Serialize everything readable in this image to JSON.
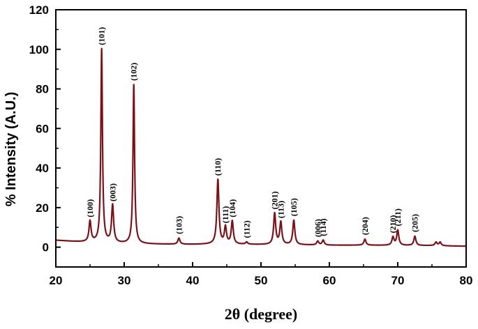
{
  "chart_data": {
    "type": "line",
    "title": "",
    "xlabel": "2θ (degree)",
    "ylabel": "% Intensity (A.U.)",
    "xlim": [
      20,
      80
    ],
    "ylim": [
      -10,
      120
    ],
    "x_ticks": [
      "20",
      "30",
      "40",
      "50",
      "60",
      "70",
      "80"
    ],
    "y_ticks": [
      "0",
      "20",
      "40",
      "60",
      "80",
      "100",
      "120"
    ],
    "grid": false,
    "legend": "none",
    "line_color": "#7a1218",
    "baseline": [
      [
        20,
        3.5
      ],
      [
        22,
        3.0
      ],
      [
        24,
        2.6
      ],
      [
        26,
        2.3
      ],
      [
        30,
        1.8
      ],
      [
        33,
        1.6
      ],
      [
        36,
        1.5
      ],
      [
        40,
        1.4
      ],
      [
        43,
        1.5
      ],
      [
        47,
        1.4
      ],
      [
        50,
        1.3
      ],
      [
        55,
        1.2
      ],
      [
        60,
        1.0
      ],
      [
        65,
        1.0
      ],
      [
        70,
        0.9
      ],
      [
        75,
        0.8
      ],
      [
        78,
        0.6
      ],
      [
        80,
        0.5
      ]
    ],
    "peaks": [
      {
        "x": 25.0,
        "y": 13,
        "label": "(100)"
      },
      {
        "x": 26.7,
        "y": 100,
        "label": "(101)"
      },
      {
        "x": 28.3,
        "y": 21,
        "label": "(003)"
      },
      {
        "x": 31.4,
        "y": 82,
        "label": "(102)"
      },
      {
        "x": 38.0,
        "y": 4.5,
        "label": "(103)"
      },
      {
        "x": 43.7,
        "y": 34,
        "label": "(110)"
      },
      {
        "x": 44.8,
        "y": 10,
        "label": "(111)"
      },
      {
        "x": 45.8,
        "y": 13,
        "label": "(104)"
      },
      {
        "x": 47.9,
        "y": 2.5,
        "label": "(112)"
      },
      {
        "x": 52.0,
        "y": 17,
        "label": "(201)"
      },
      {
        "x": 52.9,
        "y": 12.5,
        "label": "(113)"
      },
      {
        "x": 54.8,
        "y": 13.5,
        "label": "(105)"
      },
      {
        "x": 58.3,
        "y": 3,
        "label": "(006)"
      },
      {
        "x": 59.1,
        "y": 3.5,
        "label": "(114)"
      },
      {
        "x": 65.2,
        "y": 4,
        "label": "(204)"
      },
      {
        "x": 69.3,
        "y": 5,
        "label": "(210)"
      },
      {
        "x": 70.0,
        "y": 8.5,
        "label": "(211)"
      },
      {
        "x": 72.5,
        "y": 5.5,
        "label": "(205)"
      },
      {
        "x": 75.6,
        "y": 2.5,
        "label": ""
      },
      {
        "x": 76.2,
        "y": 2.5,
        "label": ""
      }
    ]
  }
}
